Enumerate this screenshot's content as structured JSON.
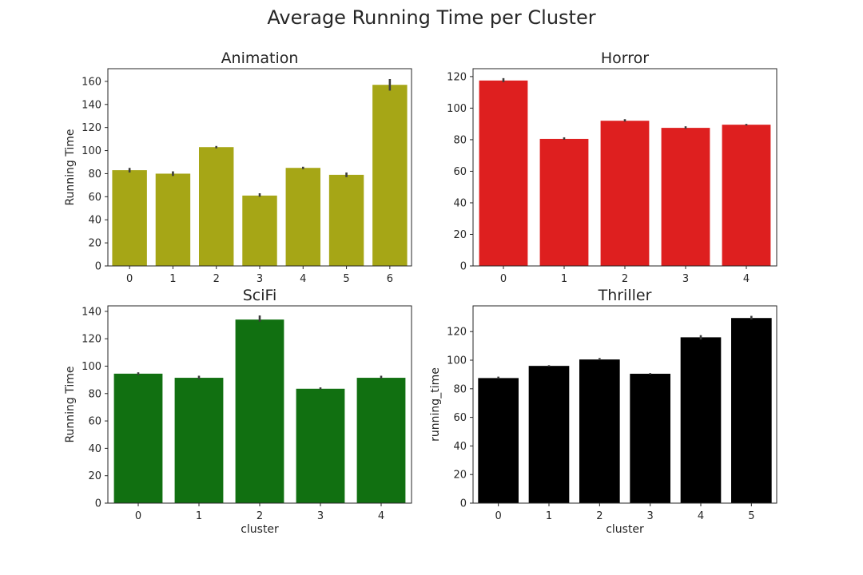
{
  "suptitle": "Average Running Time per Cluster",
  "chart_data": [
    {
      "type": "bar",
      "title": "Animation",
      "xlabel": "",
      "ylabel": "Running Time",
      "categories": [
        "0",
        "1",
        "2",
        "3",
        "4",
        "5",
        "6"
      ],
      "values": [
        83,
        80,
        103,
        61,
        85,
        79,
        157
      ],
      "error_low": [
        81,
        78,
        102,
        60,
        84,
        77,
        152
      ],
      "error_high": [
        85,
        82,
        104,
        63,
        86,
        81,
        162
      ],
      "ylim": [
        0,
        171
      ],
      "yticks": [
        0,
        20,
        40,
        60,
        80,
        100,
        120,
        140,
        160
      ],
      "color": "#a6a616",
      "grid": false
    },
    {
      "type": "bar",
      "title": "Horror",
      "xlabel": "",
      "ylabel": "",
      "categories": [
        "0",
        "1",
        "2",
        "3",
        "4"
      ],
      "values": [
        117.5,
        80.5,
        92,
        87.5,
        89.5
      ],
      "error_low": [
        116.5,
        80,
        91.5,
        87,
        89
      ],
      "error_high": [
        119,
        81.5,
        93,
        88.5,
        90
      ],
      "ylim": [
        0,
        125
      ],
      "yticks": [
        0,
        20,
        40,
        60,
        80,
        100,
        120
      ],
      "color": "#de1f1f",
      "grid": false
    },
    {
      "type": "bar",
      "title": "SciFi",
      "xlabel": "cluster",
      "ylabel": "Running Time",
      "categories": [
        "0",
        "1",
        "2",
        "3",
        "4"
      ],
      "values": [
        94.5,
        91.5,
        134,
        83.5,
        91.5
      ],
      "error_low": [
        93.5,
        90.5,
        132.5,
        83,
        91
      ],
      "error_high": [
        95.5,
        93,
        137,
        84.5,
        93
      ],
      "ylim": [
        0,
        144
      ],
      "yticks": [
        0,
        20,
        40,
        60,
        80,
        100,
        120,
        140
      ],
      "color": "#117011",
      "grid": false
    },
    {
      "type": "bar",
      "title": "Thriller",
      "xlabel": "cluster",
      "ylabel": "running_time",
      "categories": [
        "0",
        "1",
        "2",
        "3",
        "4",
        "5"
      ],
      "values": [
        87.5,
        96,
        100.5,
        90.5,
        116,
        129.5
      ],
      "error_low": [
        87,
        95.5,
        100,
        90,
        114.5,
        128.5
      ],
      "error_high": [
        88.5,
        96.5,
        101.5,
        91,
        117.5,
        131
      ],
      "ylim": [
        0,
        138
      ],
      "yticks": [
        0,
        20,
        40,
        60,
        80,
        100,
        120
      ],
      "color": "#000000",
      "grid": false
    }
  ]
}
